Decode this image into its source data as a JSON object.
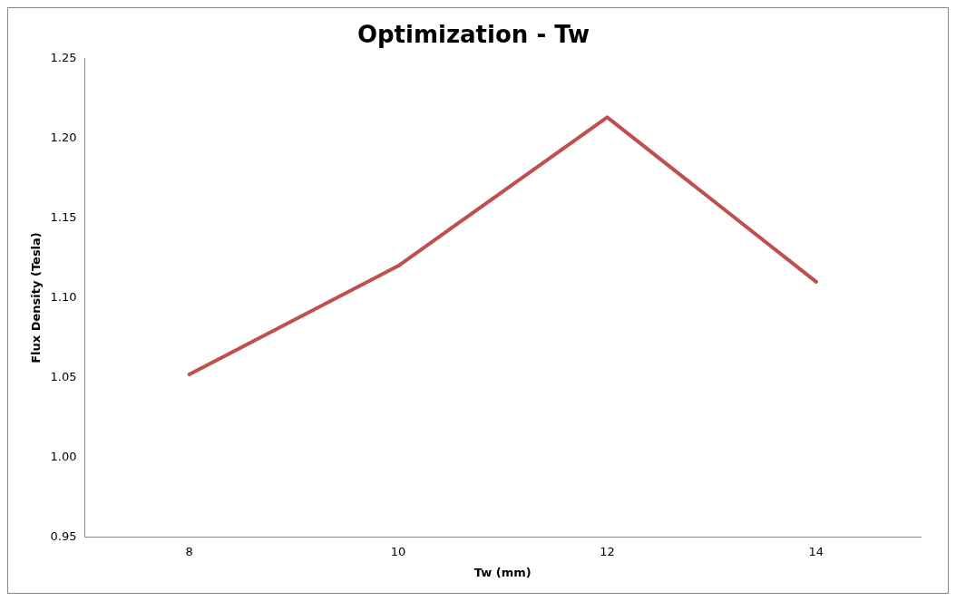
{
  "chart_data": {
    "type": "line",
    "title": "Optimization - Tw",
    "xlabel": "Tw (mm)",
    "ylabel": "Flux Density (Tesla)",
    "categories": [
      "8",
      "10",
      "12",
      "14"
    ],
    "series": [
      {
        "color": "#c0504d",
        "values": [
          1.052,
          1.12,
          1.213,
          1.11
        ]
      }
    ],
    "ylim": [
      0.95,
      1.25
    ],
    "yticks": [
      0.95,
      {
        "value": 1.0,
        "label": "1.00"
      },
      1.05,
      {
        "value": 1.1,
        "label": "1.10"
      },
      1.15,
      {
        "value": 1.2,
        "label": "1.20"
      },
      1.25
    ],
    "grid": false,
    "legend": false,
    "marker": "none",
    "line_style": "solid"
  }
}
